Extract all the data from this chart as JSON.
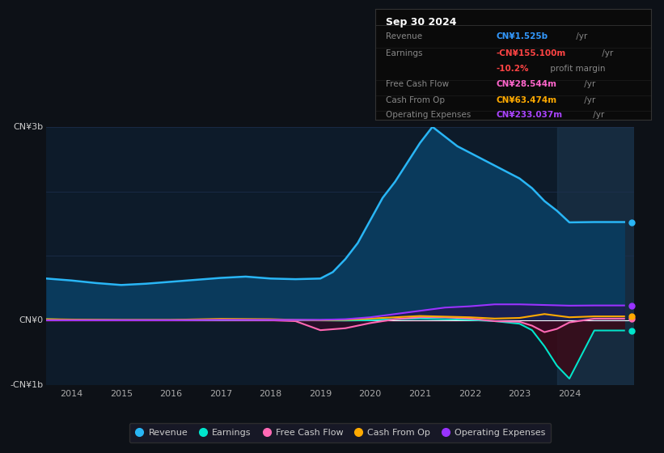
{
  "bg_color": "#0d1117",
  "plot_bg_color": "#0d1b2a",
  "grid_color": "#1e3050",
  "zero_line_color": "#ffffff",
  "ylim": [
    -1000000000.0,
    3000000000.0
  ],
  "yticks": [
    -1000000000.0,
    0,
    1000000000.0,
    2000000000.0,
    3000000000.0
  ],
  "ytick_labels": [
    "-CN¥1b",
    "CN¥0",
    "",
    "",
    "CN¥3b"
  ],
  "y_label_positions": {
    "top": "CN¥3b",
    "zero": "CN¥0",
    "bottom": "-CN¥1b"
  },
  "xlim": [
    2013.5,
    2025.3
  ],
  "xticks": [
    2014,
    2015,
    2016,
    2017,
    2018,
    2019,
    2020,
    2021,
    2022,
    2023,
    2024
  ],
  "revenue": {
    "color": "#29b6f6",
    "fill_color": "#0a3a5c",
    "x": [
      2013.5,
      2014.0,
      2014.5,
      2015.0,
      2015.5,
      2016.0,
      2016.5,
      2017.0,
      2017.5,
      2018.0,
      2018.5,
      2019.0,
      2019.25,
      2019.5,
      2019.75,
      2020.0,
      2020.25,
      2020.5,
      2020.75,
      2021.0,
      2021.25,
      2021.5,
      2021.75,
      2022.0,
      2022.25,
      2022.5,
      2022.75,
      2023.0,
      2023.25,
      2023.5,
      2023.75,
      2024.0,
      2024.5,
      2025.1
    ],
    "y": [
      650000000.0,
      620000000.0,
      580000000.0,
      550000000.0,
      570000000.0,
      600000000.0,
      630000000.0,
      660000000.0,
      680000000.0,
      650000000.0,
      640000000.0,
      650000000.0,
      750000000.0,
      950000000.0,
      1200000000.0,
      1550000000.0,
      1900000000.0,
      2150000000.0,
      2450000000.0,
      2750000000.0,
      3000000000.0,
      2850000000.0,
      2700000000.0,
      2600000000.0,
      2500000000.0,
      2400000000.0,
      2300000000.0,
      2200000000.0,
      2050000000.0,
      1850000000.0,
      1700000000.0,
      1520000000.0,
      1525000000.0,
      1525000000.0
    ]
  },
  "earnings": {
    "color": "#00e5cc",
    "x": [
      2013.5,
      2014.0,
      2015.0,
      2016.0,
      2017.0,
      2018.0,
      2018.5,
      2019.0,
      2019.5,
      2020.0,
      2020.5,
      2021.0,
      2021.5,
      2022.0,
      2022.5,
      2023.0,
      2023.25,
      2023.5,
      2023.75,
      2024.0,
      2024.5,
      2025.1
    ],
    "y": [
      20000000.0,
      10000000.0,
      5000000.0,
      5000000.0,
      8000000.0,
      10000000.0,
      5000000.0,
      2000000.0,
      0,
      5000000.0,
      20000000.0,
      30000000.0,
      20000000.0,
      10000000.0,
      -10000000.0,
      -50000000.0,
      -150000000.0,
      -400000000.0,
      -700000000.0,
      -900000000.0,
      -155000000.0,
      -155000000.0
    ]
  },
  "free_cash_flow": {
    "color": "#ff69b4",
    "x": [
      2013.5,
      2014.0,
      2015.0,
      2016.0,
      2017.0,
      2018.0,
      2018.5,
      2019.0,
      2019.5,
      2020.0,
      2020.5,
      2021.0,
      2021.5,
      2022.0,
      2022.5,
      2023.0,
      2023.25,
      2023.5,
      2023.75,
      2024.0,
      2024.5,
      2025.1
    ],
    "y": [
      10000000.0,
      5000000.0,
      5000000.0,
      5000000.0,
      10000000.0,
      5000000.0,
      -10000000.0,
      -150000000.0,
      -120000000.0,
      -40000000.0,
      20000000.0,
      50000000.0,
      50000000.0,
      30000000.0,
      -10000000.0,
      -20000000.0,
      -80000000.0,
      -180000000.0,
      -130000000.0,
      -30000000.0,
      28000000.0,
      28500000.0
    ]
  },
  "cash_from_op": {
    "color": "#ffaa00",
    "x": [
      2013.5,
      2014.0,
      2015.0,
      2016.0,
      2017.0,
      2018.0,
      2018.5,
      2019.0,
      2019.5,
      2020.0,
      2020.5,
      2021.0,
      2021.5,
      2022.0,
      2022.5,
      2023.0,
      2023.5,
      2024.0,
      2024.5,
      2025.1
    ],
    "y": [
      20000000.0,
      15000000.0,
      10000000.0,
      10000000.0,
      25000000.0,
      20000000.0,
      10000000.0,
      5000000.0,
      10000000.0,
      30000000.0,
      50000000.0,
      70000000.0,
      60000000.0,
      50000000.0,
      30000000.0,
      40000000.0,
      100000000.0,
      50000000.0,
      63500000.0,
      63500000.0
    ]
  },
  "operating_expenses": {
    "color": "#9933ff",
    "x": [
      2013.5,
      2014.0,
      2015.0,
      2016.0,
      2017.0,
      2018.0,
      2019.0,
      2019.5,
      2020.0,
      2020.5,
      2021.0,
      2021.5,
      2022.0,
      2022.5,
      2023.0,
      2023.5,
      2024.0,
      2024.5,
      2025.1
    ],
    "y": [
      5000000.0,
      5000000.0,
      5000000.0,
      5000000.0,
      10000000.0,
      10000000.0,
      10000000.0,
      20000000.0,
      50000000.0,
      100000000.0,
      150000000.0,
      200000000.0,
      220000000.0,
      250000000.0,
      250000000.0,
      240000000.0,
      230000000.0,
      233000000.0,
      233000000.0
    ]
  },
  "legend_items": [
    {
      "label": "Revenue",
      "color": "#29b6f6"
    },
    {
      "label": "Earnings",
      "color": "#00e5cc"
    },
    {
      "label": "Free Cash Flow",
      "color": "#ff69b4"
    },
    {
      "label": "Cash From Op",
      "color": "#ffaa00"
    },
    {
      "label": "Operating Expenses",
      "color": "#9933ff"
    }
  ],
  "shaded_region_x": 2023.75,
  "info_box": {
    "date": "Sep 30 2024",
    "rows": [
      {
        "label": "Revenue",
        "value": "CN¥1.525b",
        "suffix": " /yr",
        "value_color": "#3399ff"
      },
      {
        "label": "Earnings",
        "value": "-CN¥155.100m",
        "suffix": " /yr",
        "value_color": "#ff4444"
      },
      {
        "label": "",
        "value": "-10.2%",
        "suffix": " profit margin",
        "value_color": "#ff4444"
      },
      {
        "label": "Free Cash Flow",
        "value": "CN¥28.544m",
        "suffix": " /yr",
        "value_color": "#ff66cc"
      },
      {
        "label": "Cash From Op",
        "value": "CN¥63.474m",
        "suffix": " /yr",
        "value_color": "#ffaa00"
      },
      {
        "label": "Operating Expenses",
        "value": "CN¥233.037m",
        "suffix": " /yr",
        "value_color": "#aa44ff"
      }
    ]
  }
}
